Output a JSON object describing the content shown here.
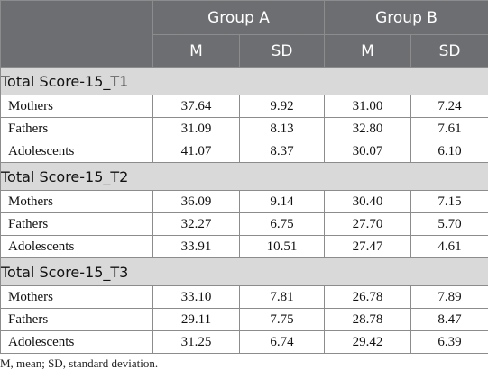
{
  "table": {
    "groups": [
      "Group A",
      "Group B"
    ],
    "subheaders": [
      "M",
      "SD",
      "M",
      "SD"
    ],
    "sections": [
      {
        "title": "Total Score-15_T1",
        "rows": [
          {
            "label": "Mothers",
            "values": [
              "37.64",
              "9.92",
              "31.00",
              "7.24"
            ]
          },
          {
            "label": "Fathers",
            "values": [
              "31.09",
              "8.13",
              "32.80",
              "7.61"
            ]
          },
          {
            "label": "Adolescents",
            "values": [
              "41.07",
              "8.37",
              "30.07",
              "6.10"
            ]
          }
        ]
      },
      {
        "title": "Total Score-15_T2",
        "rows": [
          {
            "label": "Mothers",
            "values": [
              "36.09",
              "9.14",
              "30.40",
              "7.15"
            ]
          },
          {
            "label": "Fathers",
            "values": [
              "32.27",
              "6.75",
              "27.70",
              "5.70"
            ]
          },
          {
            "label": "Adolescents",
            "values": [
              "33.91",
              "10.51",
              "27.47",
              "4.61"
            ]
          }
        ]
      },
      {
        "title": "Total Score-15_T3",
        "rows": [
          {
            "label": "Mothers",
            "values": [
              "33.10",
              "7.81",
              "26.78",
              "7.89"
            ]
          },
          {
            "label": "Fathers",
            "values": [
              "29.11",
              "7.75",
              "28.78",
              "8.47"
            ]
          },
          {
            "label": "Adolescents",
            "values": [
              "31.25",
              "6.74",
              "29.42",
              "6.39"
            ]
          }
        ]
      }
    ],
    "footnote": "M, mean; SD, standard deviation."
  },
  "colors": {
    "header_bg": "#6d6e71",
    "section_bg": "#d9d9d9",
    "border": "#8c8c8c"
  }
}
